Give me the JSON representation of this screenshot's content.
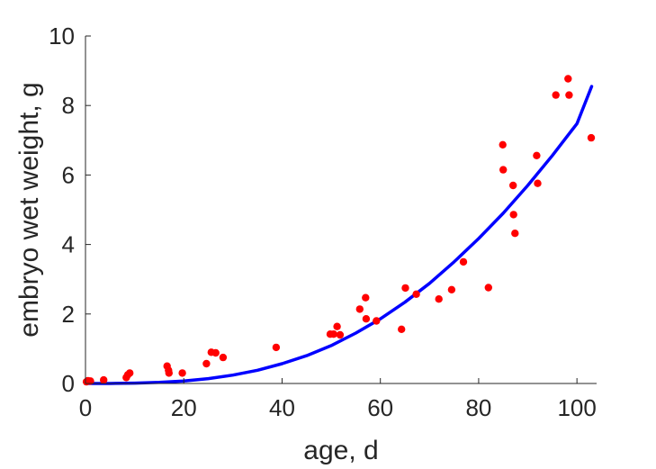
{
  "chart_data": {
    "type": "scatter",
    "xlabel": "age, d",
    "ylabel": "embryo wet weight, g",
    "xlim": [
      0,
      104
    ],
    "ylim": [
      0,
      10
    ],
    "xticks": [
      "0",
      "20",
      "40",
      "60",
      "80",
      "100"
    ],
    "yticks": [
      "0",
      "2",
      "4",
      "6",
      "8",
      "10"
    ],
    "grid": false,
    "box": false,
    "colors": {
      "points": "#ff0000",
      "curve": "#0000ff",
      "axis": "#262626"
    },
    "series": [
      {
        "kind": "points",
        "x": [
          0.2,
          0.5,
          1.0,
          3.7,
          8.3,
          8.6,
          9.0,
          16.6,
          16.9,
          17.0,
          19.7,
          24.6,
          25.6,
          26.5,
          28.0,
          38.8,
          49.8,
          50.5,
          51.2,
          51.8,
          55.8,
          57.0,
          57.1,
          59.2,
          64.3,
          65.1,
          67.3,
          71.9,
          74.5,
          76.9,
          82.0,
          84.9,
          85.0,
          87.0,
          87.1,
          87.4,
          91.8,
          92.0,
          95.7,
          98.2,
          98.4,
          102.9
        ],
        "y": [
          0.05,
          0.08,
          0.07,
          0.1,
          0.17,
          0.25,
          0.3,
          0.5,
          0.38,
          0.3,
          0.3,
          0.57,
          0.9,
          0.88,
          0.75,
          1.04,
          1.42,
          1.42,
          1.64,
          1.4,
          2.14,
          2.47,
          1.86,
          1.8,
          1.56,
          2.75,
          2.57,
          2.43,
          2.7,
          3.5,
          2.76,
          6.87,
          6.15,
          5.7,
          4.86,
          4.32,
          6.56,
          5.76,
          8.3,
          8.77,
          8.3,
          7.07
        ]
      },
      {
        "kind": "line",
        "x": [
          0,
          5,
          10,
          15,
          20,
          25,
          30,
          35,
          40,
          45,
          50,
          55,
          60,
          65,
          70,
          75,
          80,
          85,
          90,
          95,
          100,
          103
        ],
        "y": [
          0.0,
          0.0,
          0.01,
          0.03,
          0.07,
          0.14,
          0.24,
          0.38,
          0.57,
          0.8,
          1.09,
          1.45,
          1.86,
          2.34,
          2.88,
          3.5,
          4.17,
          4.9,
          5.7,
          6.56,
          7.48,
          8.55
        ]
      }
    ]
  }
}
